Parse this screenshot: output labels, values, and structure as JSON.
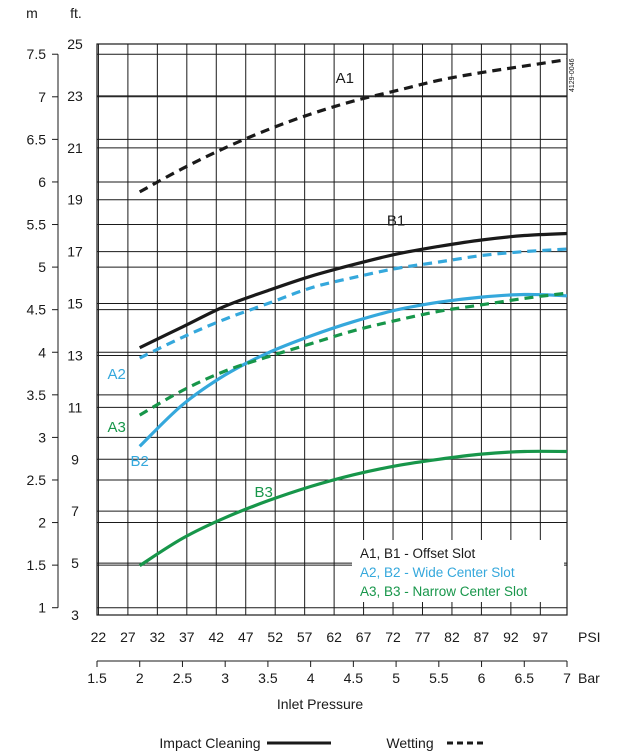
{
  "chart_data": {
    "type": "line",
    "x_unit": "Bar",
    "xlim": [
      1.5,
      7
    ],
    "xlabel": "Inlet Pressure",
    "y_units": {
      "left": "m",
      "right": "ft."
    },
    "ylim_ft": [
      3,
      25
    ],
    "x_ticks_bar": [
      "1.5",
      "2",
      "2.5",
      "3",
      "3.5",
      "4",
      "4.5",
      "5",
      "5.5",
      "6",
      "6.5",
      "7"
    ],
    "x_ticks_psi": [
      "22",
      "27",
      "32",
      "37",
      "42",
      "47",
      "52",
      "57",
      "62",
      "67",
      "72",
      "77",
      "82",
      "87",
      "92",
      "97"
    ],
    "psi_unit": "PSI",
    "bar_unit": "Bar",
    "y_ticks_ft": [
      "3",
      "5",
      "7",
      "9",
      "11",
      "13",
      "15",
      "17",
      "19",
      "21",
      "23",
      "25"
    ],
    "y_ticks_m": [
      "1",
      "1.5",
      "2",
      "2.5",
      "3",
      "3.5",
      "4",
      "4.5",
      "5",
      "5.5",
      "6",
      "6.5",
      "7",
      "7.5"
    ],
    "code": "4129-0046",
    "series": [
      {
        "name": "A1",
        "style": "dashed",
        "color": "#1a1a1a",
        "x": [
          2,
          2.5,
          3,
          3.5,
          4,
          4.5,
          5,
          5.5,
          6,
          6.5,
          7
        ],
        "y": [
          19.3,
          20.2,
          21.0,
          21.7,
          22.3,
          22.8,
          23.2,
          23.6,
          23.9,
          24.15,
          24.4
        ]
      },
      {
        "name": "B1",
        "style": "solid",
        "color": "#1a1a1a",
        "x": [
          2,
          2.5,
          3,
          3.5,
          4,
          4.5,
          5,
          5.5,
          6,
          6.5,
          7
        ],
        "y": [
          13.3,
          14.1,
          14.9,
          15.5,
          16.05,
          16.5,
          16.9,
          17.2,
          17.45,
          17.62,
          17.7
        ]
      },
      {
        "name": "A2",
        "style": "dashed",
        "color": "#35a8dc",
        "x": [
          2,
          2.5,
          3,
          3.5,
          4,
          4.5,
          5,
          5.5,
          6,
          6.5,
          7
        ],
        "y": [
          12.9,
          13.7,
          14.4,
          15.0,
          15.6,
          16.0,
          16.35,
          16.6,
          16.85,
          17.0,
          17.1
        ]
      },
      {
        "name": "B2",
        "style": "solid",
        "color": "#35a8dc",
        "x": [
          2,
          2.5,
          3,
          3.5,
          4,
          4.5,
          5,
          5.5,
          6,
          6.5,
          7
        ],
        "y": [
          9.5,
          11.1,
          12.25,
          13.1,
          13.75,
          14.3,
          14.75,
          15.05,
          15.25,
          15.35,
          15.3
        ]
      },
      {
        "name": "A3",
        "style": "dashed",
        "color": "#17964a",
        "x": [
          2,
          2.5,
          3,
          3.5,
          4,
          4.5,
          5,
          5.5,
          6,
          6.5,
          7
        ],
        "y": [
          10.7,
          11.65,
          12.4,
          12.95,
          13.45,
          13.95,
          14.35,
          14.7,
          14.95,
          15.2,
          15.4
        ]
      },
      {
        "name": "B3",
        "style": "solid",
        "color": "#17964a",
        "x": [
          2,
          2.5,
          3,
          3.5,
          4,
          4.5,
          5,
          5.5,
          6,
          6.5,
          7
        ],
        "y": [
          4.9,
          5.95,
          6.75,
          7.4,
          7.95,
          8.4,
          8.75,
          9.0,
          9.2,
          9.3,
          9.3
        ]
      }
    ],
    "series_labels": [
      {
        "name": "A1",
        "x": 4.4,
        "y": 23.5,
        "anchor": "middle",
        "color": "#1a1a1a"
      },
      {
        "name": "B1",
        "x": 5.0,
        "y": 18.0,
        "anchor": "middle",
        "color": "#1a1a1a"
      },
      {
        "name": "A2",
        "x": 1.73,
        "y": 12.1,
        "anchor": "middle",
        "color": "#35a8dc"
      },
      {
        "name": "A3",
        "x": 1.73,
        "y": 10.05,
        "anchor": "middle",
        "color": "#17964a"
      },
      {
        "name": "B2",
        "x": 2.0,
        "y": 8.75,
        "anchor": "middle",
        "color": "#35a8dc"
      },
      {
        "name": "B3",
        "x": 3.45,
        "y": 7.55,
        "anchor": "middle",
        "color": "#17964a"
      }
    ],
    "legend": [
      {
        "text": "A1, B1 - Offset Slot",
        "color": "#1a1a1a"
      },
      {
        "text": "A2, B2 - Wide Center Slot",
        "color": "#35a8dc"
      },
      {
        "text": "A3, B3 - Narrow Center Slot",
        "color": "#17964a"
      }
    ],
    "line_style_legend": [
      {
        "label": "Impact Cleaning",
        "style": "solid"
      },
      {
        "label": "Wetting",
        "style": "dashed"
      }
    ]
  }
}
